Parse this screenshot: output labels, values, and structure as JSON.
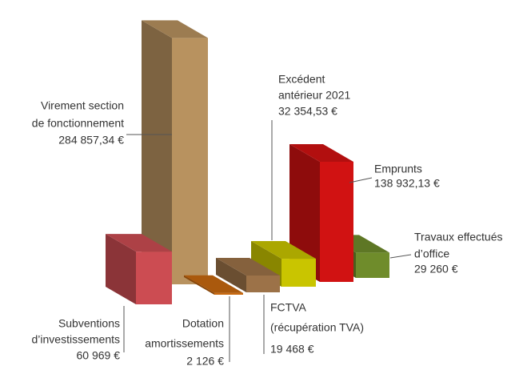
{
  "chart_data": {
    "type": "bar3d",
    "categories": [
      [
        "Subventions",
        "d’investissements"
      ],
      [
        "Virement section",
        "de fonctionnement"
      ],
      [
        "Dotation",
        "amortissements"
      ],
      [
        "FCTVA",
        "(récupération TVA)"
      ],
      [
        "Excédent",
        "antérieur 2021"
      ],
      [
        "Emprunts"
      ],
      [
        "Travaux effectués",
        "d’office"
      ]
    ],
    "values": [
      60969,
      284857.34,
      2126,
      19468,
      32354.53,
      138932.13,
      29260
    ],
    "value_labels": [
      "60 969 €",
      "284 857,34 €",
      "2 126 €",
      "19 468 €",
      "32 354,53 €",
      "138 932,13 €",
      "29 260 €"
    ],
    "colors": [
      "#cc4c52",
      "#b8925f",
      "#c8690f",
      "#9c7248",
      "#c9c500",
      "#d11212",
      "#6f8c2b"
    ]
  }
}
